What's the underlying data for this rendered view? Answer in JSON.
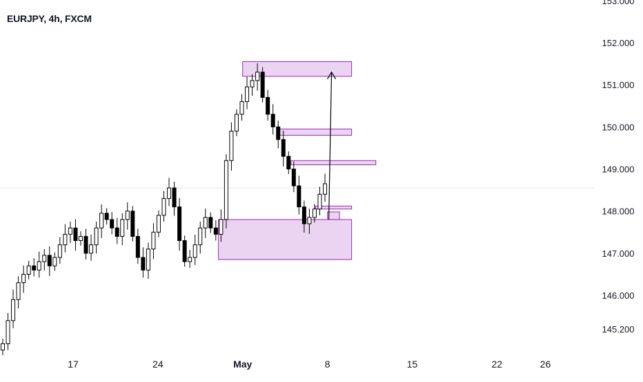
{
  "chart_data": {
    "type": "candlestick",
    "title": "EURJPY, 4h, FXCM",
    "colors": {
      "candle": "#000000",
      "zone_fill": "#e7cdee",
      "zone_stroke": "#9c27b0",
      "arrow": "#000000",
      "crosshair": "#e6e6e6"
    },
    "x_axis": {
      "range": [
        "Apr 10",
        "May 28"
      ],
      "ticks": [
        {
          "date": "Apr 17",
          "label": "17",
          "bold": false
        },
        {
          "date": "Apr 24",
          "label": "24",
          "bold": false
        },
        {
          "date": "May 1",
          "label": "May",
          "bold": true
        },
        {
          "date": "May 8",
          "label": "8",
          "bold": false
        },
        {
          "date": "May 15",
          "label": "15",
          "bold": false
        },
        {
          "date": "May 22",
          "label": "22",
          "bold": false
        },
        {
          "date": "May 26",
          "label": "26",
          "bold": false
        }
      ]
    },
    "y_axis": {
      "range": [
        145.0,
        153.0
      ],
      "ticks": [
        "153.000",
        "152.000",
        "151.000",
        "150.000",
        "149.000",
        "148.000",
        "147.000",
        "146.000",
        "145.200"
      ]
    },
    "crosshair_price": 148.55,
    "closes": [
      144.85,
      145.4,
      145.9,
      146.3,
      146.5,
      146.7,
      146.6,
      146.8,
      146.95,
      146.7,
      146.9,
      147.2,
      147.45,
      147.6,
      147.3,
      147.4,
      147.0,
      147.2,
      147.6,
      147.95,
      147.8,
      147.6,
      147.4,
      147.8,
      148.0,
      147.4,
      146.9,
      146.6,
      147.1,
      147.5,
      147.9,
      148.3,
      148.55,
      148.1,
      147.3,
      146.8,
      146.9,
      147.2,
      147.6,
      147.85,
      147.6,
      147.45,
      147.8,
      149.2,
      149.9,
      150.3,
      150.6,
      150.95,
      151.1,
      151.3,
      150.7,
      150.3,
      150.0,
      149.7,
      149.3,
      149.0,
      148.6,
      148.1,
      147.7,
      147.85,
      148.05,
      148.4,
      148.65
    ],
    "zones": [
      {
        "from": "May 1",
        "to": "May 10",
        "low": 151.2,
        "high": 151.55
      },
      {
        "from": "May 4",
        "to": "May 10",
        "low": 149.8,
        "high": 149.95
      },
      {
        "from": "May 5",
        "to": "May 12",
        "low": 149.1,
        "high": 149.2
      },
      {
        "from": "May 7",
        "to": "May 10",
        "low": 148.05,
        "high": 148.12
      },
      {
        "from": "May 8",
        "to": "May 9",
        "low": 147.8,
        "high": 147.98
      },
      {
        "from": "Apr 29",
        "to": "May 10",
        "low": 146.85,
        "high": 147.8
      }
    ],
    "arrow": {
      "from_date": "May 8",
      "from_price": 147.8,
      "to_date": "May 8",
      "to_price": 151.3
    }
  }
}
